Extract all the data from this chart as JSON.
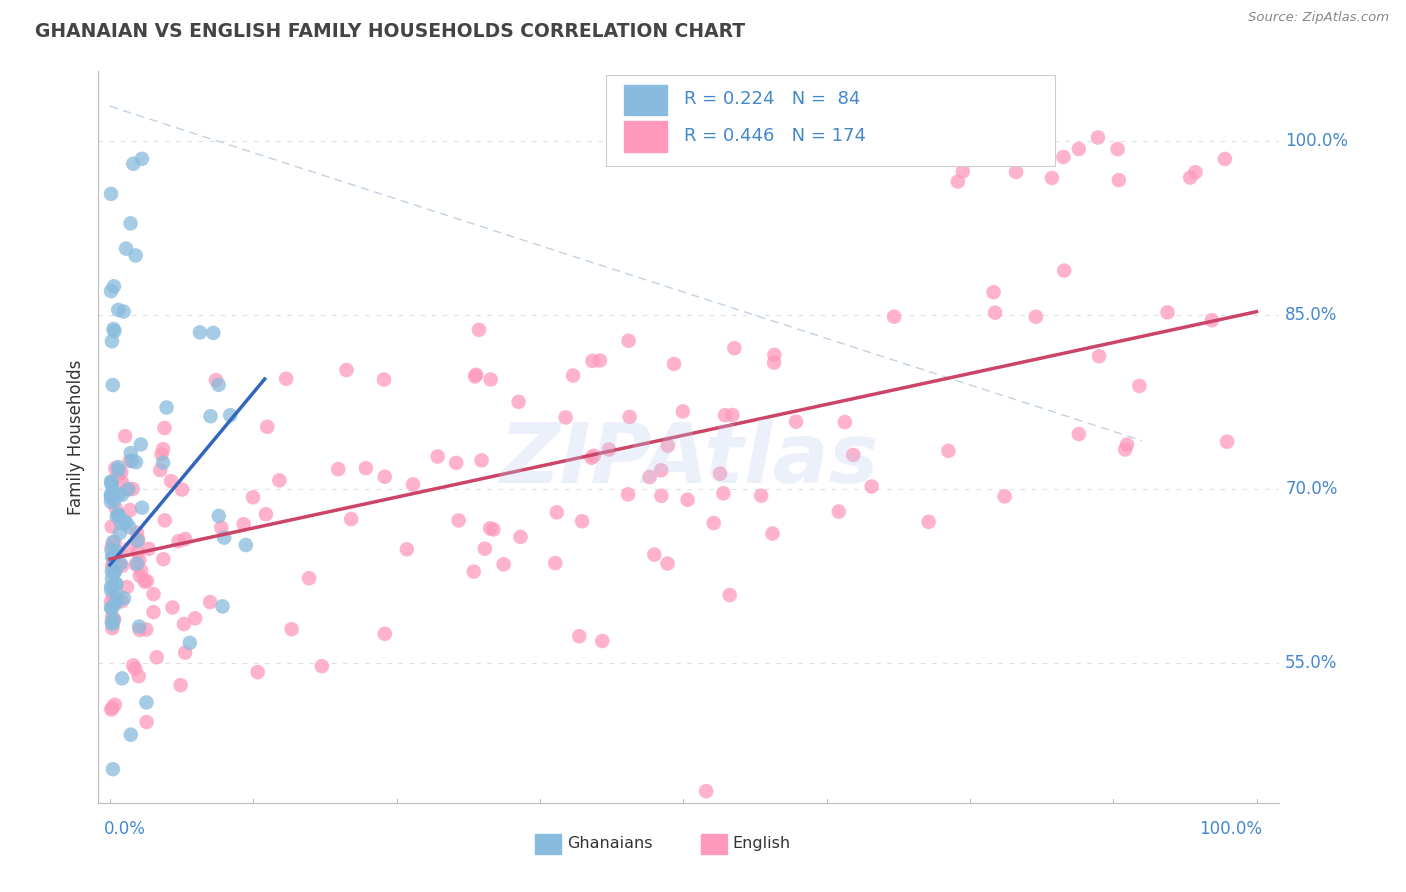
{
  "title": "GHANAIAN VS ENGLISH FAMILY HOUSEHOLDS CORRELATION CHART",
  "source": "Source: ZipAtlas.com",
  "ylabel": "Family Households",
  "y_tick_labels": [
    "55.0%",
    "70.0%",
    "85.0%",
    "100.0%"
  ],
  "y_tick_values": [
    0.55,
    0.7,
    0.85,
    1.0
  ],
  "x_range": [
    0.0,
    1.0
  ],
  "y_range": [
    0.43,
    1.06
  ],
  "R1": 0.224,
  "N1": 84,
  "R2": 0.446,
  "N2": 174,
  "blue_color": "#88BBDD",
  "pink_color": "#FF99BB",
  "blue_line_color": "#3366BB",
  "pink_line_color": "#CC4466",
  "diag_color": "#BBCCDD",
  "watermark": "ZIPAtlas",
  "watermark_color": "#BBCCEE",
  "title_color": "#444444",
  "axis_label_color": "#4488CC",
  "background_color": "#FFFFFF",
  "grid_color": "#DDDDEE",
  "spine_color": "#BBBBBB"
}
